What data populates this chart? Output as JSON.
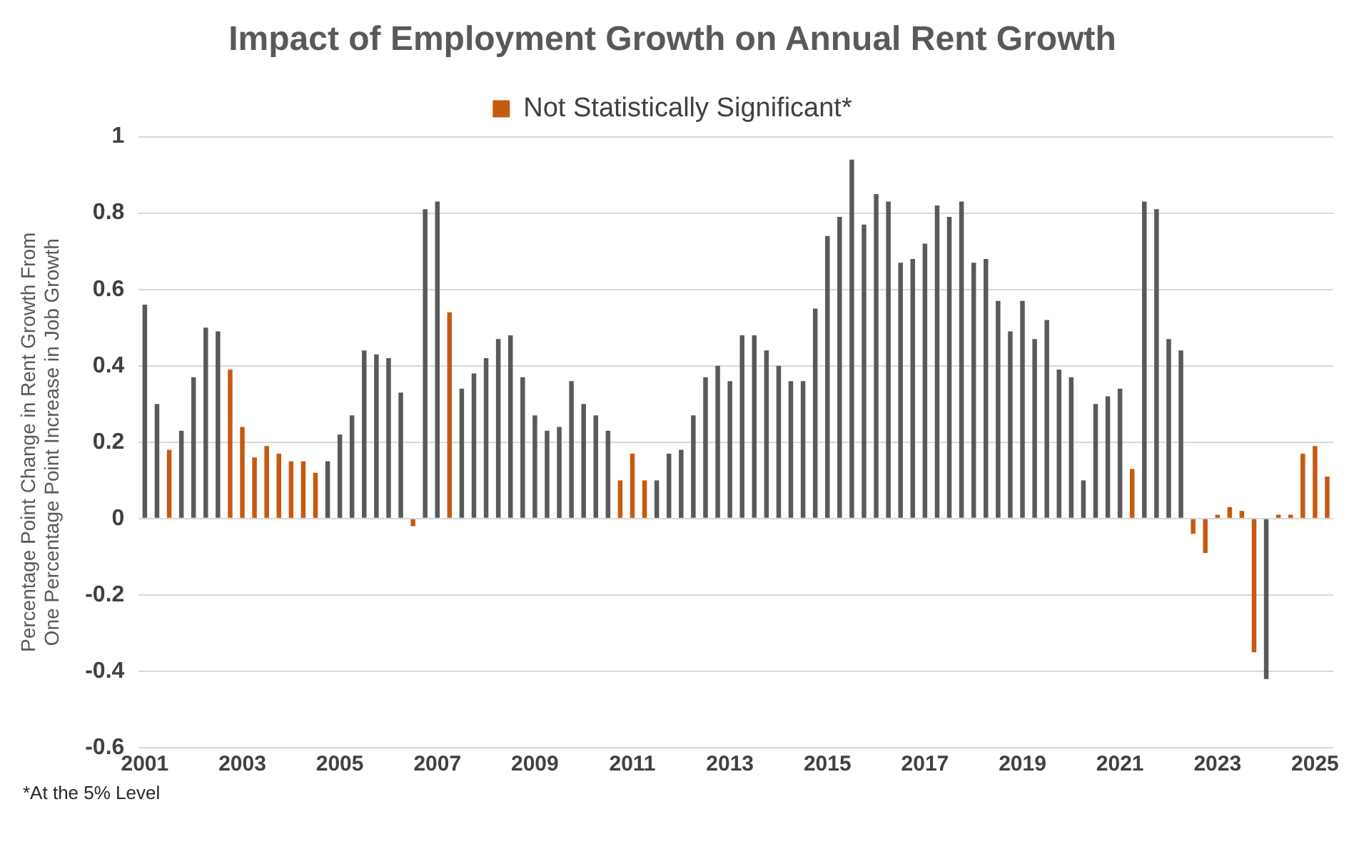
{
  "chart_data": {
    "type": "bar",
    "title": "Impact of Employment Growth on Annual Rent Growth",
    "ylabel": "Percentage Point Change in Rent Growth From One Percentage Point Increase in Job Growth",
    "categories": [
      "2001",
      null,
      null,
      null,
      null,
      null,
      null,
      null,
      "2003",
      null,
      null,
      null,
      null,
      null,
      null,
      null,
      "2005",
      null,
      null,
      null,
      null,
      null,
      null,
      null,
      "2007",
      null,
      null,
      null,
      null,
      null,
      null,
      null,
      "2009",
      null,
      null,
      null,
      null,
      null,
      null,
      null,
      "2011",
      null,
      null,
      null,
      null,
      null,
      null,
      null,
      "2013",
      null,
      null,
      null,
      null,
      null,
      null,
      null,
      "2015",
      null,
      null,
      null,
      null,
      null,
      null,
      null,
      "2017",
      null,
      null,
      null,
      null,
      null,
      null,
      null,
      "2019",
      null,
      null,
      null,
      null,
      null,
      null,
      null,
      "2021",
      null,
      null,
      null,
      null,
      null,
      null,
      null,
      "2023",
      null,
      null,
      null,
      null,
      null,
      null,
      null,
      "2025",
      null
    ],
    "series": [
      {
        "color": "#595959",
        "values": [
          0.56,
          0.3,
          null,
          0.23,
          0.37,
          0.5,
          0.49,
          null,
          null,
          null,
          null,
          null,
          null,
          null,
          null,
          0.15,
          0.22,
          0.27,
          0.44,
          0.43,
          0.42,
          0.33,
          null,
          0.81,
          0.83,
          null,
          0.34,
          0.38,
          0.42,
          0.47,
          0.48,
          0.37,
          0.27,
          0.23,
          0.24,
          0.36,
          0.3,
          0.27,
          0.23,
          null,
          null,
          null,
          0.1,
          0.17,
          0.18,
          0.27,
          0.37,
          0.4,
          0.36,
          0.48,
          0.48,
          0.44,
          0.4,
          0.36,
          0.36,
          0.55,
          0.74,
          0.79,
          0.94,
          0.77,
          0.85,
          0.83,
          0.67,
          0.68,
          0.72,
          0.82,
          0.79,
          0.83,
          0.67,
          0.68,
          0.57,
          0.49,
          0.57,
          0.47,
          0.52,
          0.39,
          0.37,
          0.1,
          0.3,
          0.32,
          0.34,
          null,
          0.83,
          0.81,
          0.47,
          0.44,
          null,
          null,
          null,
          null,
          null,
          null,
          -0.42,
          null,
          null,
          null,
          null,
          null
        ]
      },
      {
        "name": "Not Statistically Significant*",
        "color": "#c55a11",
        "values": [
          null,
          null,
          0.18,
          null,
          null,
          null,
          null,
          0.39,
          0.24,
          0.16,
          0.19,
          0.17,
          0.15,
          0.15,
          0.12,
          null,
          null,
          null,
          null,
          null,
          null,
          null,
          -0.02,
          null,
          null,
          0.54,
          null,
          null,
          null,
          null,
          null,
          null,
          null,
          null,
          null,
          null,
          null,
          null,
          null,
          0.1,
          0.17,
          0.1,
          null,
          null,
          null,
          null,
          null,
          null,
          null,
          null,
          null,
          null,
          null,
          null,
          null,
          null,
          null,
          null,
          null,
          null,
          null,
          null,
          null,
          null,
          null,
          null,
          null,
          null,
          null,
          null,
          null,
          null,
          null,
          null,
          null,
          null,
          null,
          null,
          null,
          null,
          null,
          0.13,
          null,
          null,
          null,
          null,
          -0.04,
          -0.09,
          0.01,
          0.03,
          0.02,
          -0.35,
          null,
          0.01,
          0.01,
          0.17,
          0.19,
          0.11
        ]
      }
    ],
    "ylim": [
      -0.6,
      1
    ],
    "yticks": [
      -0.6,
      -0.4,
      -0.2,
      0,
      0.2,
      0.4,
      0.6,
      0.8,
      1
    ],
    "grid": "y",
    "legend": "top",
    "annotations": [
      "*At the 5% Level"
    ]
  }
}
